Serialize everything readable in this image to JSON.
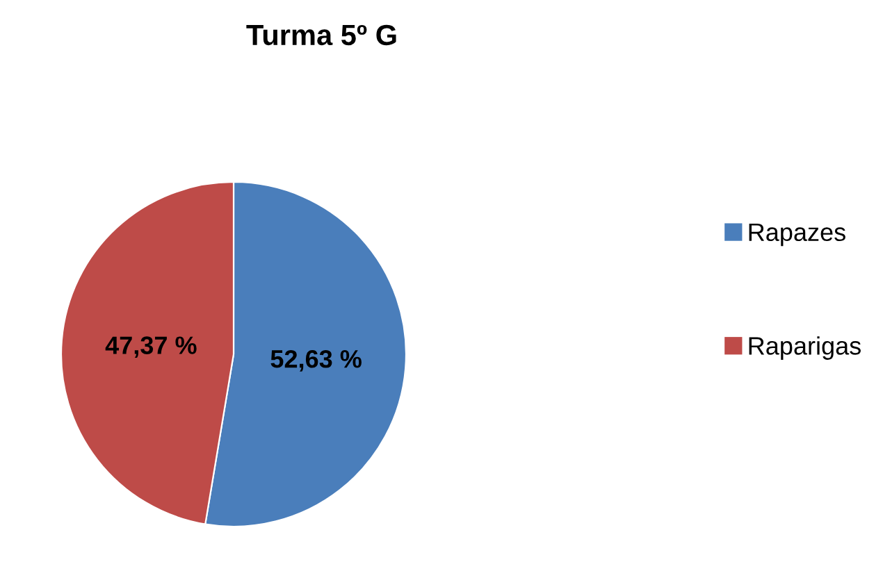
{
  "chart_data": {
    "type": "pie",
    "title": "Turma 5º G",
    "categories": [
      "Rapazes",
      "Raparigas"
    ],
    "values": [
      52.63,
      47.37
    ],
    "colors": [
      "#4a7ebb",
      "#be4b48"
    ],
    "value_labels": [
      "52,63 %",
      "47,37 %"
    ],
    "legend": "right"
  }
}
